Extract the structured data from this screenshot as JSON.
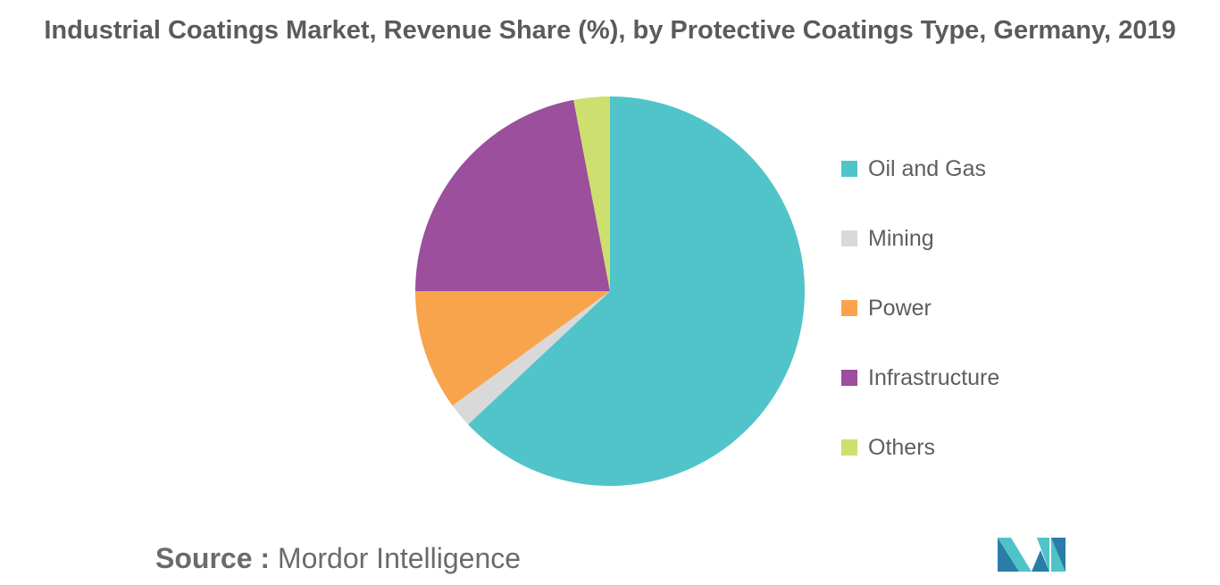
{
  "chart_data": {
    "type": "pie",
    "title": "Industrial Coatings Market, Revenue Share (%), by Protective Coatings Type, Germany, 2019",
    "slices": [
      {
        "label": "Oil and Gas",
        "value": 63,
        "color": "#51c4c9"
      },
      {
        "label": "Mining",
        "value": 2,
        "color": "#d9d9d9"
      },
      {
        "label": "Power",
        "value": 10,
        "color": "#f8a44c"
      },
      {
        "label": "Infrastructure",
        "value": 22,
        "color": "#9b4f9c"
      },
      {
        "label": "Others",
        "value": 3,
        "color": "#cddf6e"
      }
    ],
    "legend_position": "right"
  },
  "source": {
    "key": "Source :",
    "value": "Mordor Intelligence"
  },
  "logo": {
    "icon": "mordor-intelligence-logo",
    "colors": [
      "#2a7da6",
      "#4fc3c8"
    ]
  }
}
